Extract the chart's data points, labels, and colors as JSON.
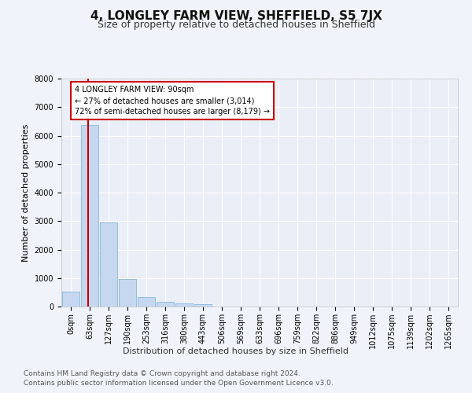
{
  "title": "4, LONGLEY FARM VIEW, SHEFFIELD, S5 7JX",
  "subtitle": "Size of property relative to detached houses in Sheffield",
  "xlabel": "Distribution of detached houses by size in Sheffield",
  "ylabel": "Number of detached properties",
  "bin_labels": [
    "0sqm",
    "63sqm",
    "127sqm",
    "190sqm",
    "253sqm",
    "316sqm",
    "380sqm",
    "443sqm",
    "506sqm",
    "569sqm",
    "633sqm",
    "696sqm",
    "759sqm",
    "822sqm",
    "886sqm",
    "949sqm",
    "1012sqm",
    "1075sqm",
    "1139sqm",
    "1202sqm",
    "1265sqm"
  ],
  "bar_values": [
    530,
    6370,
    2960,
    960,
    340,
    160,
    100,
    75,
    0,
    0,
    0,
    0,
    0,
    0,
    0,
    0,
    0,
    0,
    0,
    0,
    0
  ],
  "bar_color": "#c5d8f0",
  "bar_edge_color": "#7aafd4",
  "property_size_sqm": 90,
  "property_bin_index": 1,
  "red_line_color": "#cc0000",
  "annotation_text": "4 LONGLEY FARM VIEW: 90sqm\n← 27% of detached houses are smaller (3,014)\n72% of semi-detached houses are larger (8,179) →",
  "annotation_box_color": "#ffffff",
  "annotation_box_edge_color": "#cc0000",
  "ylim": [
    0,
    8000
  ],
  "yticks": [
    0,
    1000,
    2000,
    3000,
    4000,
    5000,
    6000,
    7000,
    8000
  ],
  "footer_line1": "Contains HM Land Registry data © Crown copyright and database right 2024.",
  "footer_line2": "Contains public sector information licensed under the Open Government Licence v3.0.",
  "bg_color": "#f0f4fa",
  "plot_bg_color": "#eaeff7",
  "grid_color": "#ffffff",
  "title_fontsize": 11,
  "subtitle_fontsize": 9,
  "axis_label_fontsize": 8,
  "tick_fontsize": 7,
  "footer_fontsize": 6.5
}
